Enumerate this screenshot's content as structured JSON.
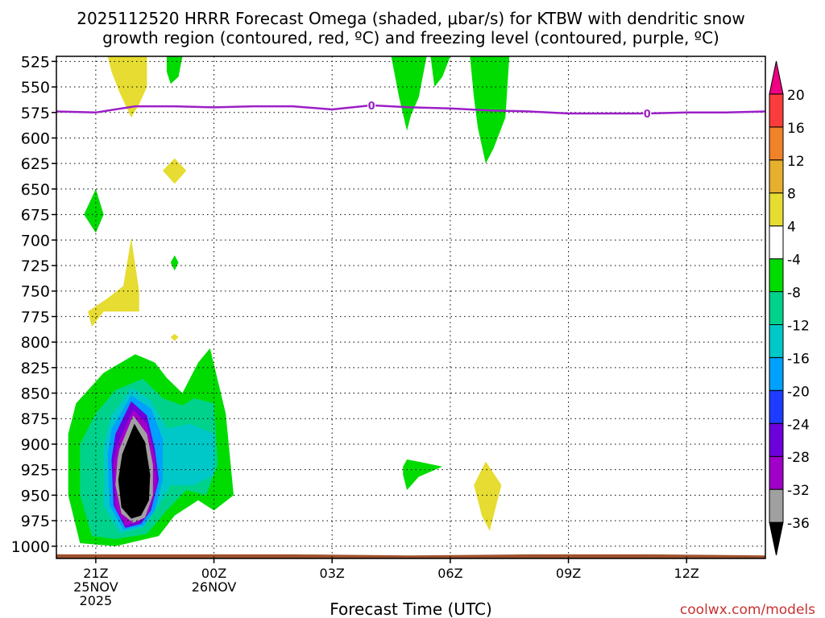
{
  "chart_data": {
    "type": "heatmap",
    "title_line1": "2025112520 HRRR Forecast Omega (shaded, μbar/s) for KTBW with dendritic snow",
    "title_line2": "growth region (contoured, red, ºC) and freezing level (contoured, purple, ºC)",
    "xlabel": "Forecast Time (UTC)",
    "credit": "coolwx.com/models",
    "x_unit": "hours since 2025-11-25 20Z",
    "xlim": [
      0,
      18
    ],
    "ylim": [
      1012,
      520
    ],
    "y_ticks": [
      525,
      550,
      575,
      600,
      625,
      650,
      675,
      700,
      725,
      750,
      775,
      800,
      825,
      850,
      875,
      900,
      925,
      950,
      975,
      1000
    ],
    "x_ticks": [
      {
        "x": 1,
        "lines": [
          "21Z",
          "25NOV",
          "2025"
        ]
      },
      {
        "x": 4,
        "lines": [
          "00Z",
          "26NOV"
        ]
      },
      {
        "x": 7,
        "lines": [
          "03Z"
        ]
      },
      {
        "x": 10,
        "lines": [
          "06Z"
        ]
      },
      {
        "x": 13,
        "lines": [
          "09Z"
        ]
      },
      {
        "x": 16,
        "lines": [
          "12Z"
        ]
      }
    ],
    "colorbar": {
      "colors": [
        "#000000",
        "#a0a0a0",
        "#a000c8",
        "#6e00dc",
        "#1e3cff",
        "#00a0ff",
        "#00c8c8",
        "#00d28c",
        "#00dc00",
        "#ffffff",
        "#e6dc32",
        "#e6af2d",
        "#f08228",
        "#fa3c3c",
        "#f00082"
      ],
      "tick_labels": [
        "-36",
        "-32",
        "-28",
        "-24",
        "-20",
        "-16",
        "-12",
        "-8",
        "-4",
        "4",
        "8",
        "12",
        "16",
        "20"
      ]
    },
    "freezing_level": {
      "label": "0",
      "points": [
        [
          0,
          574
        ],
        [
          1,
          575
        ],
        [
          2,
          569
        ],
        [
          3,
          569
        ],
        [
          4,
          570
        ],
        [
          5,
          569
        ],
        [
          6,
          569
        ],
        [
          7,
          572
        ],
        [
          8,
          568
        ],
        [
          9,
          570
        ],
        [
          10,
          571
        ],
        [
          11,
          573
        ],
        [
          12,
          574
        ],
        [
          13,
          576
        ],
        [
          14,
          576
        ],
        [
          15,
          576
        ],
        [
          16,
          575
        ],
        [
          17,
          575
        ],
        [
          18,
          574
        ]
      ],
      "label_x": [
        8,
        15
      ]
    },
    "omega_regions": [
      {
        "level": 4,
        "points": [
          [
            1.3,
            520
          ],
          [
            2.3,
            520
          ],
          [
            2.3,
            550
          ],
          [
            2.1,
            567
          ],
          [
            1.9,
            580
          ],
          [
            1.6,
            555
          ],
          [
            1.4,
            535
          ]
        ]
      },
      {
        "level": -4,
        "points": [
          [
            2.8,
            520
          ],
          [
            3.2,
            520
          ],
          [
            3.1,
            540
          ],
          [
            2.9,
            547
          ],
          [
            2.8,
            535
          ]
        ]
      },
      {
        "level": -4,
        "points": [
          [
            8.5,
            520
          ],
          [
            9.4,
            520
          ],
          [
            9.2,
            560
          ],
          [
            9.0,
            578
          ],
          [
            8.9,
            593
          ],
          [
            8.7,
            560
          ]
        ]
      },
      {
        "level": -4,
        "points": [
          [
            9.5,
            520
          ],
          [
            10.0,
            520
          ],
          [
            9.8,
            540
          ],
          [
            9.6,
            550
          ]
        ]
      },
      {
        "level": -4,
        "points": [
          [
            10.5,
            520
          ],
          [
            11.5,
            520
          ],
          [
            11.4,
            580
          ],
          [
            11.1,
            610
          ],
          [
            10.9,
            625
          ],
          [
            10.7,
            590
          ],
          [
            10.6,
            560
          ]
        ]
      },
      {
        "level": 4,
        "points": [
          [
            2.7,
            632
          ],
          [
            3.0,
            620
          ],
          [
            3.3,
            632
          ],
          [
            3.0,
            645
          ]
        ]
      },
      {
        "level": -4,
        "points": [
          [
            0.7,
            675
          ],
          [
            1.0,
            650
          ],
          [
            1.2,
            675
          ],
          [
            1.0,
            693
          ]
        ]
      },
      {
        "level": 4,
        "points": [
          [
            0.8,
            770
          ],
          [
            1.3,
            757
          ],
          [
            1.7,
            745
          ],
          [
            1.9,
            698
          ],
          [
            2.1,
            750
          ],
          [
            2.1,
            770
          ],
          [
            1.2,
            770
          ],
          [
            0.9,
            785
          ]
        ]
      },
      {
        "level": -4,
        "points": [
          [
            2.9,
            722
          ],
          [
            3.0,
            715
          ],
          [
            3.1,
            722
          ],
          [
            3.0,
            730
          ]
        ]
      },
      {
        "level": 4,
        "points": [
          [
            2.9,
            795
          ],
          [
            3.0,
            792
          ],
          [
            3.1,
            795
          ],
          [
            3.0,
            799
          ]
        ]
      },
      {
        "level": -4,
        "points": [
          [
            0.3,
            890
          ],
          [
            0.5,
            860
          ],
          [
            1.2,
            830
          ],
          [
            2.0,
            812
          ],
          [
            2.5,
            820
          ],
          [
            2.8,
            835
          ],
          [
            3.2,
            850
          ],
          [
            3.6,
            820
          ],
          [
            3.9,
            806
          ],
          [
            4.3,
            870
          ],
          [
            4.5,
            950
          ],
          [
            4.0,
            965
          ],
          [
            3.6,
            955
          ],
          [
            3.0,
            970
          ],
          [
            2.6,
            990
          ],
          [
            1.5,
            1000
          ],
          [
            0.6,
            997
          ],
          [
            0.3,
            950
          ]
        ]
      },
      {
        "level": -8,
        "points": [
          [
            0.6,
            900
          ],
          [
            1.0,
            870
          ],
          [
            1.5,
            847
          ],
          [
            2.2,
            836
          ],
          [
            2.7,
            855
          ],
          [
            3.2,
            862
          ],
          [
            3.5,
            855
          ],
          [
            4.0,
            860
          ],
          [
            4.1,
            920
          ],
          [
            3.8,
            950
          ],
          [
            3.3,
            945
          ],
          [
            2.8,
            965
          ],
          [
            2.3,
            988
          ],
          [
            1.5,
            993
          ],
          [
            0.9,
            990
          ],
          [
            0.6,
            950
          ]
        ]
      },
      {
        "level": -12,
        "points": [
          [
            1.4,
            872
          ],
          [
            1.9,
            845
          ],
          [
            2.4,
            857
          ],
          [
            2.8,
            885
          ],
          [
            3.4,
            880
          ],
          [
            4.0,
            890
          ],
          [
            4.0,
            930
          ],
          [
            3.5,
            940
          ],
          [
            2.9,
            940
          ],
          [
            2.6,
            960
          ],
          [
            2.2,
            982
          ],
          [
            1.6,
            987
          ],
          [
            1.2,
            960
          ],
          [
            1.2,
            900
          ]
        ]
      },
      {
        "level": -16,
        "points": [
          [
            1.4,
            885
          ],
          [
            1.9,
            852
          ],
          [
            2.4,
            865
          ],
          [
            2.7,
            895
          ],
          [
            2.7,
            935
          ],
          [
            2.5,
            965
          ],
          [
            2.2,
            980
          ],
          [
            1.7,
            984
          ],
          [
            1.35,
            960
          ],
          [
            1.3,
            910
          ]
        ]
      },
      {
        "level": -24,
        "points": [
          [
            1.5,
            890
          ],
          [
            1.9,
            858
          ],
          [
            2.3,
            872
          ],
          [
            2.5,
            905
          ],
          [
            2.6,
            935
          ],
          [
            2.4,
            965
          ],
          [
            2.15,
            978
          ],
          [
            1.75,
            982
          ],
          [
            1.45,
            960
          ],
          [
            1.4,
            915
          ]
        ]
      },
      {
        "level": -28,
        "points": [
          [
            1.55,
            900
          ],
          [
            1.95,
            866
          ],
          [
            2.3,
            880
          ],
          [
            2.5,
            912
          ],
          [
            2.55,
            940
          ],
          [
            2.35,
            967
          ],
          [
            2.1,
            976
          ],
          [
            1.75,
            980
          ],
          [
            1.5,
            962
          ],
          [
            1.45,
            920
          ]
        ]
      },
      {
        "level": -32,
        "points": [
          [
            1.6,
            905
          ],
          [
            1.95,
            872
          ],
          [
            2.3,
            890
          ],
          [
            2.45,
            920
          ],
          [
            2.45,
            950
          ],
          [
            2.25,
            972
          ],
          [
            1.95,
            977
          ],
          [
            1.65,
            968
          ],
          [
            1.5,
            940
          ],
          [
            1.55,
            915
          ]
        ]
      },
      {
        "level": -36,
        "points": [
          [
            1.67,
            910
          ],
          [
            1.98,
            880
          ],
          [
            2.25,
            898
          ],
          [
            2.38,
            930
          ],
          [
            2.35,
            955
          ],
          [
            2.15,
            970
          ],
          [
            1.9,
            973
          ],
          [
            1.65,
            962
          ],
          [
            1.57,
            935
          ]
        ]
      },
      {
        "level": -4,
        "points": [
          [
            8.8,
            922
          ],
          [
            8.9,
            915
          ],
          [
            9.3,
            918
          ],
          [
            9.8,
            922
          ],
          [
            9.2,
            932
          ],
          [
            8.9,
            945
          ],
          [
            8.8,
            930
          ]
        ]
      },
      {
        "level": 4,
        "points": [
          [
            10.6,
            940
          ],
          [
            10.9,
            917
          ],
          [
            11.3,
            940
          ],
          [
            11.0,
            985
          ],
          [
            10.8,
            970
          ]
        ]
      }
    ],
    "ground": {
      "pressure": 1012,
      "points": [
        [
          0,
          1008
        ],
        [
          6,
          1008
        ],
        [
          9,
          1009
        ],
        [
          12,
          1008
        ],
        [
          15,
          1008
        ],
        [
          18,
          1009
        ]
      ]
    }
  }
}
